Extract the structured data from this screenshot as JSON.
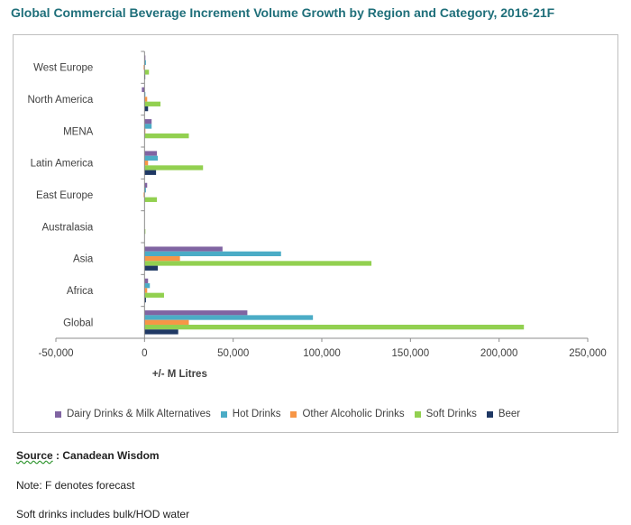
{
  "title": "Global Commercial Beverage Increment Volume Growth by Region and Category, 2016-21F",
  "chart_data": {
    "type": "bar",
    "orientation": "horizontal",
    "categories": [
      "West Europe",
      "North America",
      "MENA",
      "Latin America",
      "East Europe",
      "Australasia",
      "Asia",
      "Africa",
      "Global"
    ],
    "series": [
      {
        "name": "Dairy Drinks & Milk Alternatives",
        "color": "#8064a2",
        "values": [
          500,
          -1500,
          4000,
          7000,
          1500,
          0,
          44000,
          2000,
          58000
        ]
      },
      {
        "name": "Hot Drinks",
        "color": "#4bacc6",
        "values": [
          800,
          500,
          4000,
          7500,
          800,
          0,
          77000,
          3000,
          95000
        ]
      },
      {
        "name": "Other Alcoholic Drinks",
        "color": "#f79646",
        "values": [
          -500,
          1500,
          500,
          2000,
          -500,
          0,
          20000,
          1500,
          25000
        ]
      },
      {
        "name": "Soft Drinks",
        "color": "#92d050",
        "values": [
          2500,
          9000,
          25000,
          33000,
          7000,
          500,
          128000,
          11000,
          214000
        ]
      },
      {
        "name": "Beer",
        "color": "#1f3864",
        "values": [
          300,
          2000,
          0,
          6500,
          0,
          0,
          7500,
          800,
          19000
        ]
      }
    ],
    "xlabel": "+/- M Litres",
    "xlim": [
      -50000,
      250000
    ],
    "xticks": [
      -50000,
      0,
      50000,
      100000,
      150000,
      200000,
      250000
    ],
    "xtick_labels": [
      "-50,000",
      "0",
      "50,000",
      "100,000",
      "150,000",
      "200,000",
      "250,000"
    ],
    "grid": false,
    "legend_position": "bottom"
  },
  "footer": {
    "source_label": "Source",
    "source_value": " : Canadean Wisdom",
    "note": "Note: F denotes forecast",
    "note2": "Soft drinks includes bulk/HOD water"
  }
}
